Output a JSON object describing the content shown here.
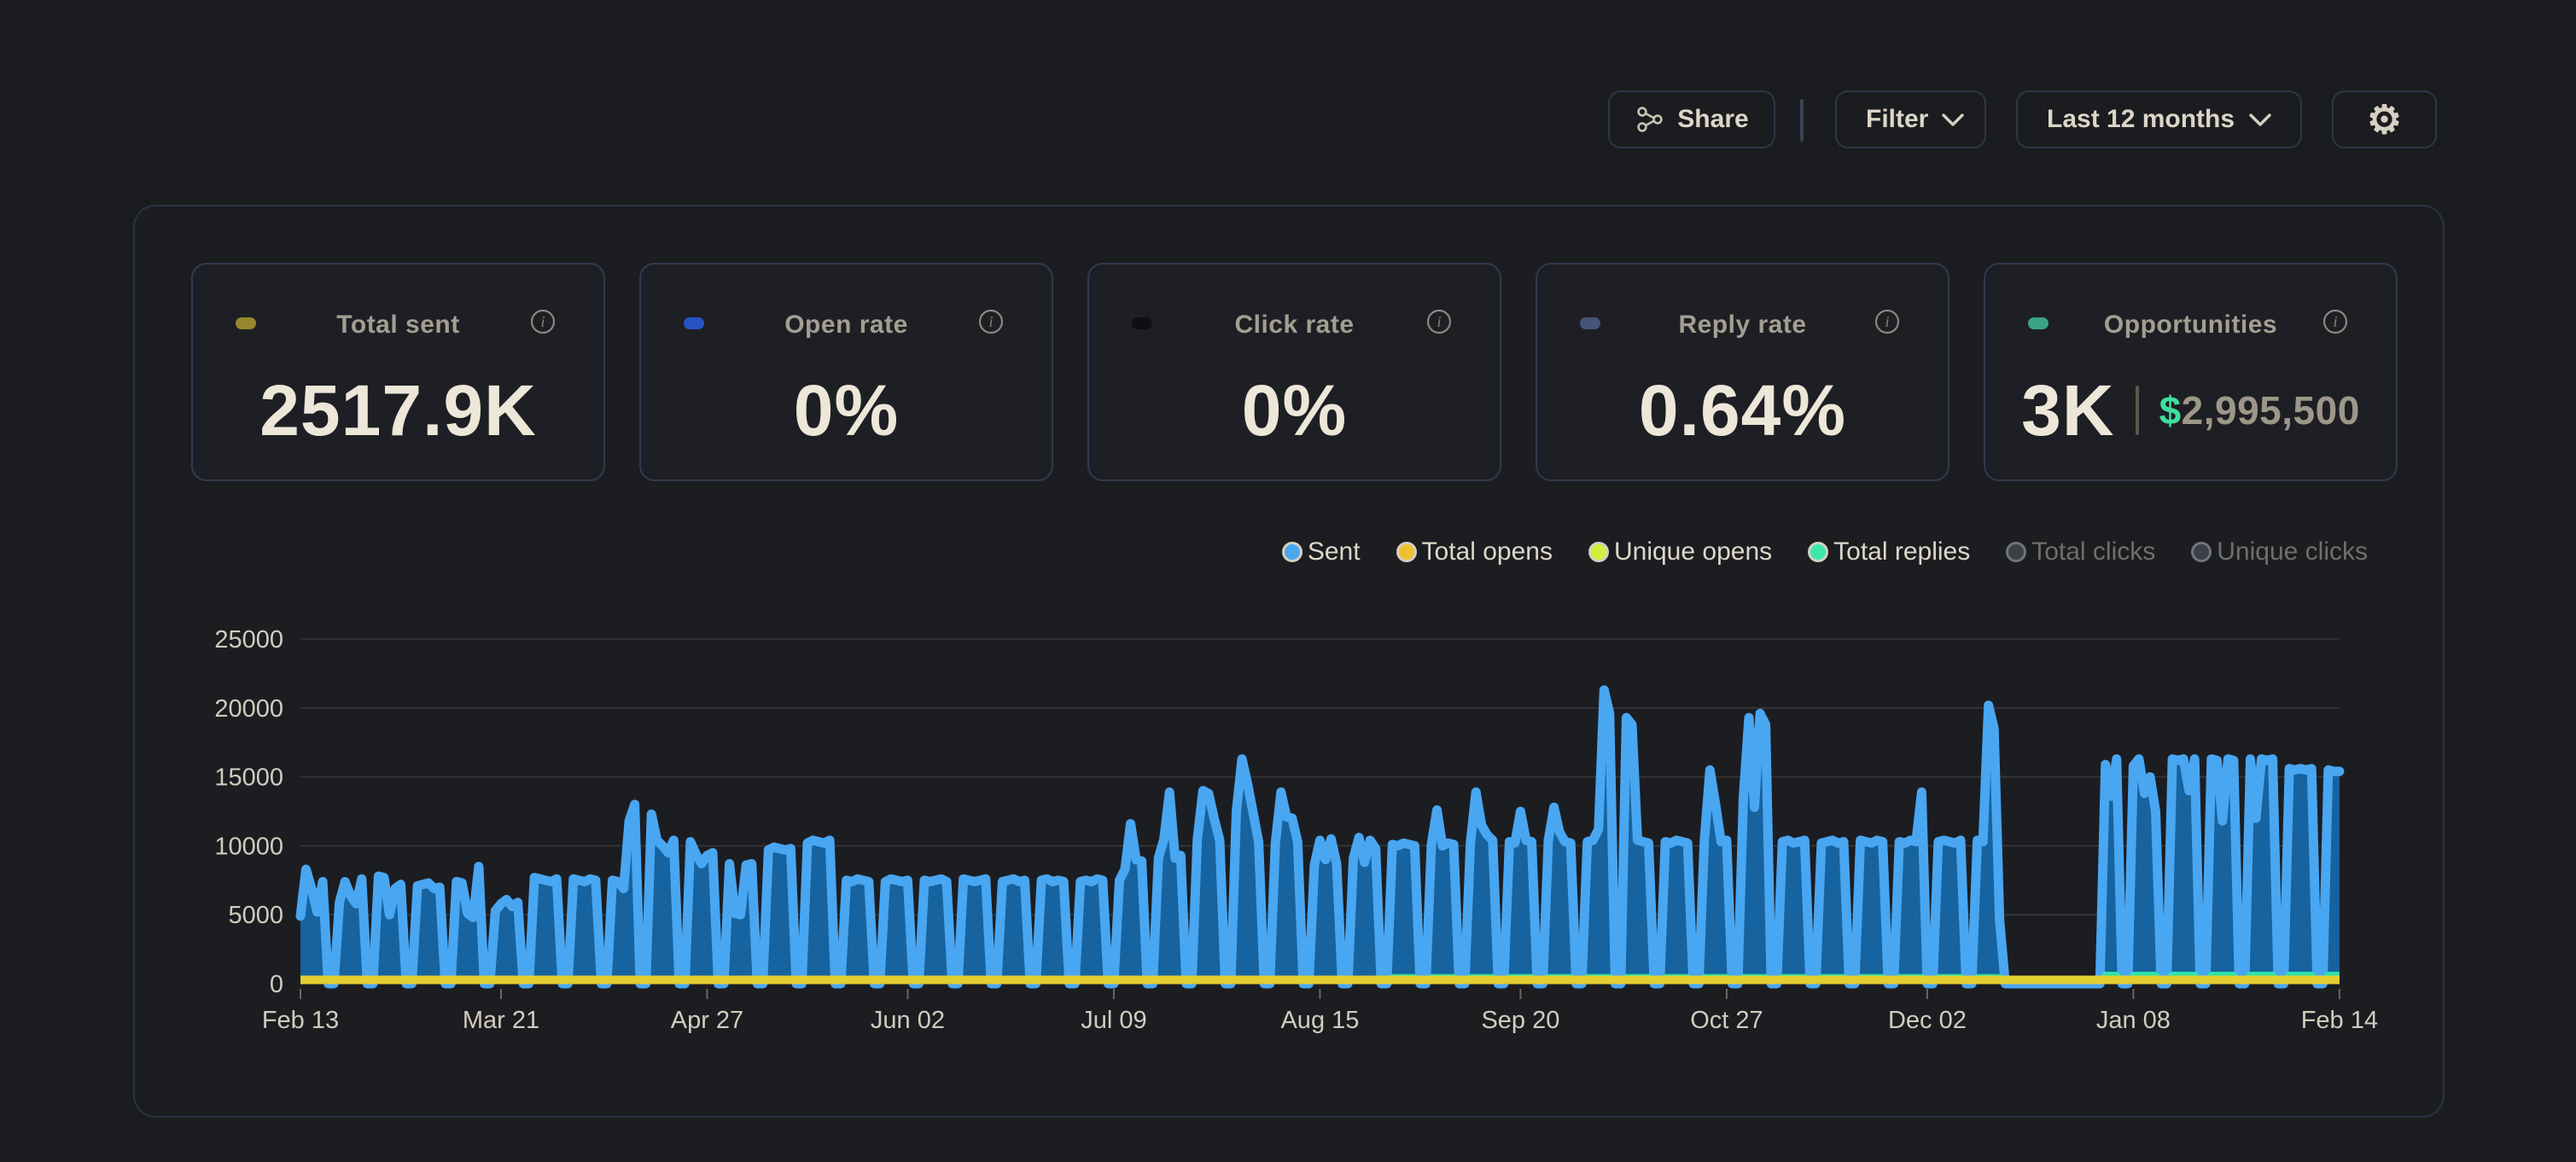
{
  "toolbar": {
    "share_label": "Share",
    "filter_label": "Filter",
    "date_range_label": "Last 12 months",
    "gear_glyph": "⚙",
    "icons": [
      "share-network-icon",
      "chevron-down-icon",
      "gear-icon"
    ]
  },
  "cards": [
    {
      "label": "Total sent",
      "value": "2517.9K",
      "pill_color": "#97882c"
    },
    {
      "label": "Open rate",
      "value": "0%",
      "pill_color": "#2853c4"
    },
    {
      "label": "Click rate",
      "value": "0%",
      "pill_color": "#0e0f12"
    },
    {
      "label": "Reply rate",
      "value": "0.64%",
      "pill_color": "#46547a"
    },
    {
      "label": "Opportunities",
      "value": "3K",
      "pill_color": "#3aa386",
      "currency_symbol": "$",
      "amount": "2,995,500"
    }
  ],
  "legend": {
    "items": [
      {
        "label": "Sent",
        "color": "#4aa7f0",
        "active": true
      },
      {
        "label": "Total opens",
        "color": "#eec132",
        "active": true
      },
      {
        "label": "Unique opens",
        "color": "#cdf23c",
        "active": true
      },
      {
        "label": "Total replies",
        "color": "#3ee6ae",
        "active": true
      },
      {
        "label": "Total clicks",
        "color": "#3b4148",
        "active": false
      },
      {
        "label": "Unique clicks",
        "color": "#3b4148",
        "active": false
      }
    ]
  },
  "chart_data": {
    "type": "line",
    "ylabel": "",
    "xlabel": "",
    "ylim": [
      0,
      25000
    ],
    "grid": true,
    "legend_position": "top-right",
    "y_ticks": [
      0,
      5000,
      10000,
      15000,
      20000,
      25000
    ],
    "x_ticks": [
      [
        0,
        "Feb 13"
      ],
      [
        36,
        "Mar 21"
      ],
      [
        73,
        "Apr 27"
      ],
      [
        109,
        "Jun 02"
      ],
      [
        146,
        "Jul 09"
      ],
      [
        183,
        "Aug 15"
      ],
      [
        219,
        "Sep 20"
      ],
      [
        256,
        "Oct 27"
      ],
      [
        292,
        "Dec 02"
      ],
      [
        329,
        "Jan 08"
      ],
      [
        366,
        "Feb 14"
      ]
    ],
    "colors": {
      "sent_line": "#49a6f1",
      "sent_fill": "#16639f",
      "total_opens": "#e2ce31",
      "unique_opens": "#c3e32d",
      "total_replies": "#2fe3a9",
      "grid": "#4a4a48"
    },
    "series": [
      {
        "name": "Sent",
        "values": [
          4900,
          8300,
          6900,
          5200,
          7400,
          0,
          0,
          5900,
          7400,
          6400,
          5800,
          7600,
          0,
          0,
          7800,
          7700,
          5000,
          6900,
          7200,
          0,
          0,
          7100,
          7200,
          7300,
          6900,
          7000,
          0,
          0,
          7400,
          7300,
          5100,
          4800,
          8500,
          0,
          0,
          5300,
          5800,
          6100,
          5600,
          5900,
          0,
          0,
          7700,
          7600,
          7500,
          7400,
          7600,
          0,
          0,
          7600,
          7500,
          7400,
          7600,
          7500,
          0,
          0,
          7500,
          7400,
          6900,
          11800,
          13000,
          0,
          0,
          12300,
          10400,
          10000,
          9500,
          10400,
          0,
          0,
          10300,
          9400,
          8700,
          9300,
          9500,
          0,
          0,
          8700,
          5100,
          5000,
          8600,
          8700,
          0,
          0,
          9700,
          9900,
          9800,
          9700,
          9800,
          0,
          0,
          10200,
          10400,
          10300,
          10200,
          10400,
          0,
          0,
          7500,
          7400,
          7600,
          7500,
          7400,
          0,
          0,
          7400,
          7600,
          7500,
          7400,
          7500,
          0,
          0,
          7500,
          7400,
          7500,
          7600,
          7400,
          0,
          0,
          7600,
          7500,
          7400,
          7500,
          7600,
          0,
          0,
          7400,
          7500,
          7600,
          7400,
          7500,
          0,
          0,
          7500,
          7600,
          7400,
          7500,
          7400,
          0,
          0,
          7400,
          7500,
          7400,
          7600,
          7500,
          0,
          0,
          7500,
          8300,
          11600,
          9000,
          8900,
          0,
          0,
          9100,
          10500,
          13900,
          9100,
          9300,
          0,
          0,
          10500,
          14000,
          13800,
          12000,
          10400,
          0,
          0,
          12500,
          16300,
          14500,
          12400,
          10300,
          0,
          0,
          10200,
          13900,
          12100,
          12000,
          10300,
          0,
          0,
          8600,
          10400,
          9000,
          10500,
          8700,
          0,
          0,
          9100,
          10600,
          8800,
          10400,
          9800,
          0,
          0,
          10100,
          10000,
          10200,
          10100,
          10000,
          0,
          0,
          10100,
          12600,
          10000,
          10200,
          10100,
          0,
          0,
          10200,
          13900,
          11500,
          10800,
          10400,
          0,
          0,
          10300,
          10200,
          12500,
          10400,
          10300,
          0,
          0,
          10400,
          12800,
          11000,
          10300,
          10200,
          0,
          0,
          10300,
          10400,
          11200,
          21300,
          19600,
          0,
          0,
          19300,
          18800,
          10400,
          10300,
          10200,
          0,
          0,
          10300,
          10200,
          10400,
          10300,
          10200,
          0,
          0,
          10400,
          15500,
          13000,
          10300,
          10400,
          0,
          0,
          13500,
          19300,
          12800,
          19600,
          18800,
          0,
          0,
          10300,
          10400,
          10200,
          10300,
          10400,
          0,
          0,
          10200,
          10300,
          10400,
          10200,
          10300,
          0,
          0,
          10400,
          10300,
          10200,
          10400,
          10300,
          0,
          0,
          10300,
          10200,
          10400,
          10300,
          13900,
          0,
          0,
          10300,
          10400,
          10300,
          10200,
          10400,
          0,
          0,
          10400,
          10300,
          20200,
          18500,
          4600,
          0,
          0,
          0,
          0,
          0,
          0,
          0,
          0,
          0,
          0,
          0,
          0,
          0,
          0,
          0,
          0,
          0,
          0,
          15900,
          13600,
          16300,
          0,
          0,
          15800,
          16300,
          13800,
          15000,
          12500,
          0,
          0,
          16300,
          16200,
          16300,
          14000,
          16300,
          0,
          0,
          16300,
          16200,
          11800,
          16300,
          16200,
          0,
          0,
          16300,
          12000,
          16300,
          16200,
          16300,
          0,
          0,
          15600,
          15500,
          15600,
          15500,
          15600,
          0,
          0,
          15500,
          15400,
          15400
        ]
      },
      {
        "name": "Total opens",
        "constant_value": 280
      },
      {
        "name": "Unique opens",
        "constant_value": 240
      },
      {
        "name": "Total replies",
        "baseline": 200,
        "active_bump_late": 650,
        "active_bump_mid": 480,
        "mid_start_day": 196,
        "late_start_day": 322
      }
    ]
  }
}
